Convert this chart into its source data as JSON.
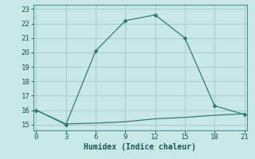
{
  "title": "",
  "xlabel": "Humidex (Indice chaleur)",
  "ylabel": "",
  "bg_color": "#c8e8e8",
  "grid_color": "#a8cccc",
  "line_color": "#2e7d70",
  "line1_x": [
    0,
    3,
    6,
    9,
    12,
    15,
    18,
    21
  ],
  "line1_y": [
    16.0,
    15.0,
    20.1,
    22.2,
    22.6,
    21.0,
    16.3,
    15.7
  ],
  "line2_x": [
    0,
    3,
    6,
    9,
    12,
    15,
    18,
    21
  ],
  "line2_y": [
    16.0,
    15.05,
    15.1,
    15.2,
    15.4,
    15.5,
    15.65,
    15.75
  ],
  "xlim": [
    -0.3,
    21.3
  ],
  "ylim": [
    14.6,
    23.3
  ],
  "xticks": [
    0,
    3,
    6,
    9,
    12,
    15,
    18,
    21
  ],
  "yticks": [
    15,
    16,
    17,
    18,
    19,
    20,
    21,
    22,
    23
  ],
  "xlabel_fontsize": 7,
  "tick_fontsize": 6.5
}
